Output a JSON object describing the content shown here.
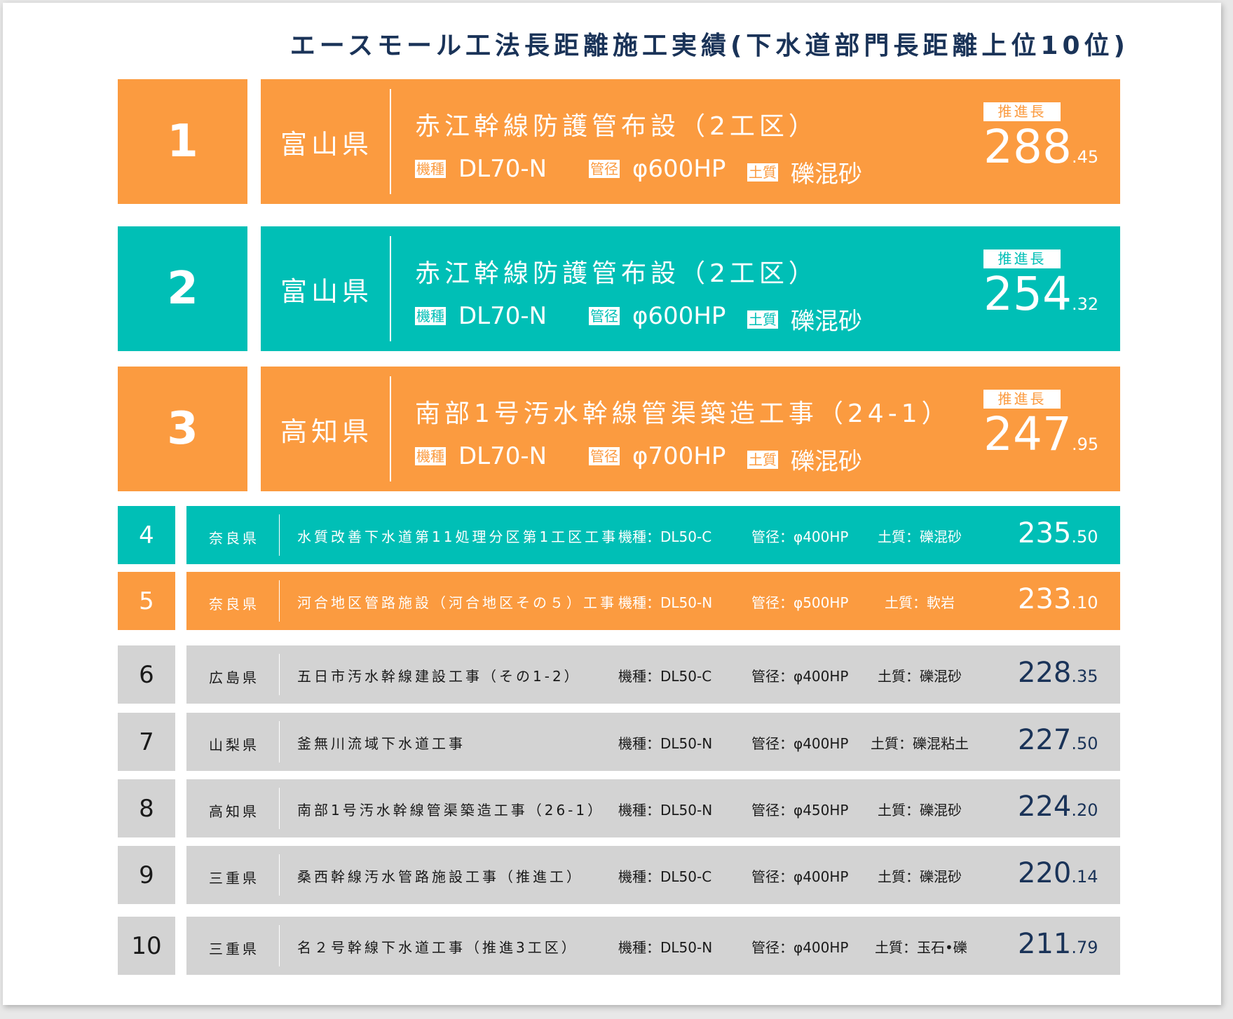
{
  "title": "エースモール工法長距離施工実績(下水道部門長距離上位10位)",
  "colors": {
    "orange": "#fb9b40",
    "teal": "#00bfb6",
    "gray": "#d3d3d3",
    "navy": "#1a3358"
  },
  "labels": {
    "model": "機種",
    "pipe": "管径",
    "soil": "土質",
    "length": "推進長"
  },
  "top": [
    {
      "rank": "1",
      "pref": "富山県",
      "project": "赤江幹線防護管布設（2工区）",
      "model": "DL70-N",
      "pipe": "φ600HP",
      "soil": "礫混砂",
      "len_int": "288",
      "len_dec": ".45",
      "color": "orange"
    },
    {
      "rank": "2",
      "pref": "富山県",
      "project": "赤江幹線防護管布設（2工区）",
      "model": "DL70-N",
      "pipe": "φ600HP",
      "soil": "礫混砂",
      "len_int": "254",
      "len_dec": ".32",
      "color": "teal"
    },
    {
      "rank": "3",
      "pref": "高知県",
      "project": "南部1号汚水幹線管渠築造工事（24-1）",
      "model": "DL70-N",
      "pipe": "φ700HP",
      "soil": "礫混砂",
      "len_int": "247",
      "len_dec": ".95",
      "color": "orange"
    }
  ],
  "rest": [
    {
      "rank": "4",
      "pref": "奈良県",
      "project": "水質改善下水道第11処理分区第1工区工事",
      "model": "機種：DL50-C",
      "pipe": "管径：φ400HP",
      "soil": "土質：礫混砂",
      "len_int": "235",
      "len_dec": ".50",
      "color": "teal"
    },
    {
      "rank": "5",
      "pref": "奈良県",
      "project": "河合地区管路施設（河合地区その５）工事",
      "model": "機種：DL50-N",
      "pipe": "管径：φ500HP",
      "soil": "土質：軟岩",
      "len_int": "233",
      "len_dec": ".10",
      "color": "orange"
    },
    {
      "rank": "6",
      "pref": "広島県",
      "project": "五日市汚水幹線建設工事（その1-2）",
      "model": "機種：DL50-C",
      "pipe": "管径：φ400HP",
      "soil": "土質：礫混砂",
      "len_int": "228",
      "len_dec": ".35",
      "color": "gray"
    },
    {
      "rank": "7",
      "pref": "山梨県",
      "project": "釜無川流域下水道工事",
      "model": "機種：DL50-N",
      "pipe": "管径：φ400HP",
      "soil": "土質：礫混粘土",
      "len_int": "227",
      "len_dec": ".50",
      "color": "gray"
    },
    {
      "rank": "8",
      "pref": "高知県",
      "project": "南部1号汚水幹線管渠築造工事（26-1）",
      "model": "機種：DL50-N",
      "pipe": "管径：φ450HP",
      "soil": "土質：礫混砂",
      "len_int": "224",
      "len_dec": ".20",
      "color": "gray"
    },
    {
      "rank": "9",
      "pref": "三重県",
      "project": "桑西幹線汚水管路施設工事（推進工）",
      "model": "機種：DL50-C",
      "pipe": "管径：φ400HP",
      "soil": "土質：礫混砂",
      "len_int": "220",
      "len_dec": ".14",
      "color": "gray"
    },
    {
      "rank": "10",
      "pref": "三重県",
      "project": "名２号幹線下水道工事（推進3工区）",
      "model": "機種：DL50-N",
      "pipe": "管径：φ400HP",
      "soil": "土質：玉石•礫",
      "len_int": "211",
      "len_dec": ".79",
      "color": "gray"
    }
  ]
}
